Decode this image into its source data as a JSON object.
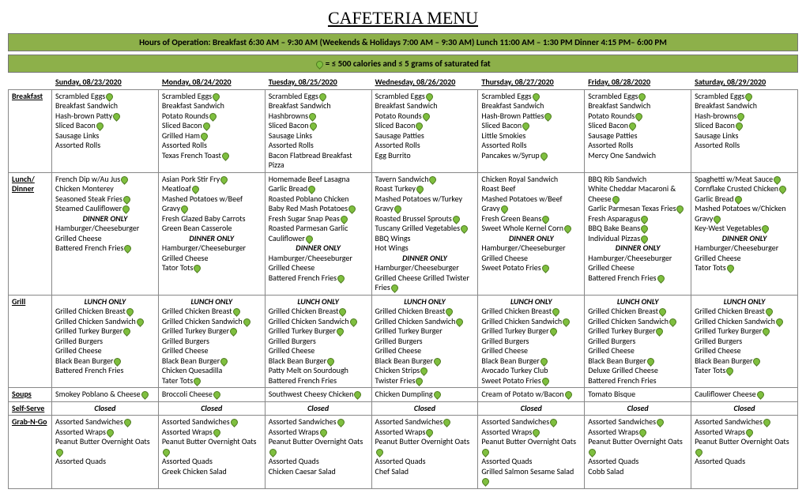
{
  "title": "CAFETERIA MENU",
  "banner1": "Hours of Operation:  Breakfast 6:30 AM – 9:30 AM (Weekends & Holidays 7:00 AM – 9:30 AM)   Lunch 11:00 AM – 1:30 PM   Dinner 4:15 PM– 6:00 PM",
  "banner2_suffix": " = ≤ 500 calories and ≤ 5 grams of saturated fat",
  "dates": [
    "Sunday, 08/23/2020",
    "Monday, 08/24/2020",
    "Tuesday, 08/25/2020",
    "Wednesday, 08/26/2020",
    "Thursday, 08/27/2020",
    "Friday, 08/28/2020",
    "Saturday, 08/29/2020"
  ],
  "colors": {
    "banner_bg": "#8db04a",
    "leaf": "#7fbf3f"
  },
  "rows": [
    {
      "cat": "Breakfast",
      "days": [
        [
          {
            "t": "Scrambled Eggs",
            "h": true
          },
          {
            "t": "Breakfast Sandwich"
          },
          {
            "t": "Hash-brown Patty",
            "h": true
          },
          {
            "t": "Sliced Bacon",
            "h": true
          },
          {
            "t": "Sausage Links"
          },
          {
            "t": "Assorted Rolls"
          }
        ],
        [
          {
            "t": "Scrambled Eggs",
            "h": true
          },
          {
            "t": "Breakfast Sandwich"
          },
          {
            "t": "Potato Rounds",
            "h": true
          },
          {
            "t": "Sliced Bacon",
            "h": true
          },
          {
            "t": "Grilled Ham",
            "h": true
          },
          {
            "t": "Assorted Rolls"
          },
          {
            "t": "Texas French Toast",
            "h": true
          }
        ],
        [
          {
            "t": "Scrambled Eggs",
            "h": true
          },
          {
            "t": "Breakfast Sandwich"
          },
          {
            "t": "Hashbrowns",
            "h": true
          },
          {
            "t": "Sliced Bacon",
            "h": true
          },
          {
            "t": "Sausage Links"
          },
          {
            "t": "Assorted Rolls"
          },
          {
            "t": "Bacon Flatbread Breakfast Pizza"
          }
        ],
        [
          {
            "t": "Scrambled Eggs",
            "h": true
          },
          {
            "t": "Breakfast Sandwich"
          },
          {
            "t": "Potato Rounds",
            "h": true
          },
          {
            "t": "Sliced Bacon",
            "h": true
          },
          {
            "t": "Sausage Patties"
          },
          {
            "t": "Assorted Rolls"
          },
          {
            "t": "Egg Burrito"
          }
        ],
        [
          {
            "t": "Scrambled Eggs",
            "h": true
          },
          {
            "t": "Breakfast Sandwich"
          },
          {
            "t": "Hash-Brown Patties",
            "h": true
          },
          {
            "t": "Sliced Bacon",
            "h": true
          },
          {
            "t": "Little Smokies"
          },
          {
            "t": "Assorted Rolls"
          },
          {
            "t": "Pancakes w/Syrup",
            "h": true
          }
        ],
        [
          {
            "t": "Scrambled Eggs",
            "h": true
          },
          {
            "t": "Breakfast Sandwich"
          },
          {
            "t": "Potato Rounds",
            "h": true
          },
          {
            "t": "Sliced Bacon",
            "h": true
          },
          {
            "t": "Sausage Patties"
          },
          {
            "t": "Assorted Rolls"
          },
          {
            "t": "Mercy One Sandwich"
          }
        ],
        [
          {
            "t": "Scrambled Eggs",
            "h": true
          },
          {
            "t": "Breakfast Sandwich"
          },
          {
            "t": "Hash-browns",
            "h": true
          },
          {
            "t": "Sliced Bacon",
            "h": true
          },
          {
            "t": "Sausage Links"
          },
          {
            "t": "Assorted Rolls"
          }
        ]
      ]
    },
    {
      "cat": "Lunch/\nDinner",
      "days": [
        [
          {
            "t": "French Dip w/Au Jus",
            "h": true
          },
          {
            "t": "Chicken Monterey"
          },
          {
            "t": "Seasoned Steak Fries",
            "h": true
          },
          {
            "t": "Steamed Cauliflower",
            "h": true
          },
          {
            "t": "DINNER ONLY",
            "em": true,
            "center": true
          },
          {
            "t": "Hamburger/Cheeseburger"
          },
          {
            "t": "Grilled Cheese"
          },
          {
            "t": "Battered French Fries",
            "h": true
          }
        ],
        [
          {
            "t": "Asian Pork Stir Fry",
            "h": true
          },
          {
            "t": "Meatloaf",
            "h": true
          },
          {
            "t": "Mashed Potatoes w/Beef Gravy",
            "h": true
          },
          {
            "t": "Fresh Glazed Baby Carrots"
          },
          {
            "t": "Green Bean Casserole"
          },
          {
            "t": "DINNER ONLY",
            "em": true,
            "center": true
          },
          {
            "t": "Hamburger/Cheeseburger"
          },
          {
            "t": "Grilled Cheese"
          },
          {
            "t": "Tator Tots",
            "h": true
          }
        ],
        [
          {
            "t": "Homemade Beef Lasagna"
          },
          {
            "t": "Garlic Bread",
            "h": true
          },
          {
            "t": "Roasted Poblano Chicken"
          },
          {
            "t": "Baby Red Mash Potatoes",
            "h": true
          },
          {
            "t": "Fresh Sugar Snap Peas",
            "h": true
          },
          {
            "t": "Roasted Parmesan Garlic Cauliflower",
            "h": true
          },
          {
            "t": "DINNER ONLY",
            "em": true,
            "center": true
          },
          {
            "t": "Hamburger/Cheeseburger"
          },
          {
            "t": "Grilled Cheese"
          },
          {
            "t": "Battered French Fries",
            "h": true
          }
        ],
        [
          {
            "t": "Tavern Sandwich",
            "h": true
          },
          {
            "t": "Roast Turkey",
            "h": true
          },
          {
            "t": "Mashed Potatoes w/Turkey Gravy",
            "h": true
          },
          {
            "t": "Roasted Brussel Sprouts",
            "h": true
          },
          {
            "t": "Tuscany Grilled Vegetables",
            "h": true
          },
          {
            "t": "BBQ Wings"
          },
          {
            "t": "Hot Wings"
          },
          {
            "t": "DINNER ONLY",
            "em": true,
            "center": true
          },
          {
            "t": "Hamburger/Cheeseburger"
          },
          {
            "t": "Grilled Cheese Grilled Twister Fries",
            "h": true
          }
        ],
        [
          {
            "t": "Chicken Royal Sandwich"
          },
          {
            "t": "Roast Beef"
          },
          {
            "t": "Mashed Potatoes w/Beef Gravy",
            "h": true
          },
          {
            "t": " Fresh Green Beans",
            "h": true
          },
          {
            "t": "Sweet Whole Kernel Corn",
            "h": true
          },
          {
            "t": "DINNER ONLY",
            "em": true,
            "center": true
          },
          {
            "t": "Hamburger/Cheeseburger"
          },
          {
            "t": "Grilled Cheese"
          },
          {
            "t": "Sweet Potato Fries",
            "h": true
          }
        ],
        [
          {
            "t": "BBQ Rib Sandwich"
          },
          {
            "t": "White Cheddar Macaroni & Cheese",
            "h": true
          },
          {
            "t": "Garlic Parmesan Texas Fries",
            "h": true
          },
          {
            "t": "Fresh Asparagus",
            "h": true
          },
          {
            "t": "BBQ Bake Beans",
            "h": true
          },
          {
            "t": "Individual Pizzas",
            "h": true
          },
          {
            "t": "DINNER ONLY",
            "em": true,
            "center": true
          },
          {
            "t": "Hamburger/Cheeseburger"
          },
          {
            "t": "Grilled Cheese"
          },
          {
            "t": "Battered French Fries",
            "h": true
          }
        ],
        [
          {
            "t": "Spaghetti w/Meat Sauce",
            "h": true
          },
          {
            "t": "Cornflake Crusted Chicken",
            "h": true
          },
          {
            "t": "Garlic Bread",
            "h": true
          },
          {
            "t": "Mashed Potatoes w/Chicken Gravy",
            "h": true
          },
          {
            "t": "Key-West Vegetables",
            "h": true
          },
          {
            "t": "DINNER ONLY",
            "em": true,
            "center": true
          },
          {
            "t": "Hamburger/Cheeseburger"
          },
          {
            "t": "Grilled Cheese"
          },
          {
            "t": "Tator Tots",
            "h": true
          }
        ]
      ]
    },
    {
      "cat": "Grill",
      "days": [
        [
          {
            "t": "LUNCH ONLY",
            "em": true,
            "center": true
          },
          {
            "t": "Grilled Chicken Breast",
            "h": true
          },
          {
            "t": "Grilled Chicken Sandwich",
            "h": true
          },
          {
            "t": "Grilled Turkey Burger",
            "h": true
          },
          {
            "t": "Grilled Burgers"
          },
          {
            "t": "Grilled Cheese"
          },
          {
            "t": "Black Bean Burger",
            "h": true
          },
          {
            "t": "Battered French Fries"
          }
        ],
        [
          {
            "t": "LUNCH ONLY",
            "em": true,
            "center": true
          },
          {
            "t": "Grilled Chicken Breast",
            "h": true
          },
          {
            "t": "Grilled Chicken Sandwich",
            "h": true
          },
          {
            "t": "Grilled Turkey Burger",
            "h": true
          },
          {
            "t": "Grilled Burgers"
          },
          {
            "t": "Grilled Cheese"
          },
          {
            "t": "Black Bean Burger",
            "h": true
          },
          {
            "t": "Chicken Quesadilla"
          },
          {
            "t": "Tater Tots",
            "h": true
          }
        ],
        [
          {
            "t": "LUNCH ONLY",
            "em": true,
            "center": true
          },
          {
            "t": "Grilled Chicken Breast",
            "h": true
          },
          {
            "t": "Grilled Chicken Sandwich",
            "h": true
          },
          {
            "t": "Grilled Turkey Burger",
            "h": true
          },
          {
            "t": "Grilled Burgers"
          },
          {
            "t": "Grilled Cheese"
          },
          {
            "t": "Black Bean Burger",
            "h": true
          },
          {
            "t": "Patty Melt on Sourdough"
          },
          {
            "t": "Battered French Fries"
          }
        ],
        [
          {
            "t": "LUNCH ONLY",
            "em": true,
            "center": true
          },
          {
            "t": "Grilled Chicken Breast",
            "h": true
          },
          {
            "t": "Grilled Chicken Sandwich",
            "h": true
          },
          {
            "t": "Grilled Turkey Burger"
          },
          {
            "t": "Grilled Burgers"
          },
          {
            "t": "Grilled Cheese"
          },
          {
            "t": "Black Bean Burger",
            "h": true
          },
          {
            "t": "Chicken Strips",
            "h": true
          },
          {
            "t": "Twister Fries",
            "h": true
          }
        ],
        [
          {
            "t": "LUNCH ONLY",
            "em": true,
            "center": true
          },
          {
            "t": "Grilled Chicken Breast",
            "h": true
          },
          {
            "t": "Grilled Chicken Sandwich",
            "h": true
          },
          {
            "t": "Grilled Turkey Burger",
            "h": true
          },
          {
            "t": "Grilled Burgers"
          },
          {
            "t": "Grilled Cheese"
          },
          {
            "t": "Black Bean Burger",
            "h": true
          },
          {
            "t": "Avocado Turkey Club"
          },
          {
            "t": "Sweet Potato Fries",
            "h": true
          }
        ],
        [
          {
            "t": "LUNCH ONLY",
            "em": true,
            "center": true
          },
          {
            "t": "Grilled Chicken Breast",
            "h": true
          },
          {
            "t": "Grilled Chicken Sandwich",
            "h": true
          },
          {
            "t": "Grilled Turkey Burger",
            "h": true
          },
          {
            "t": "Grilled Burgers"
          },
          {
            "t": "Grilled Cheese"
          },
          {
            "t": "Black Bean Burger",
            "h": true
          },
          {
            "t": "Deluxe Grilled Cheese"
          },
          {
            "t": "Battered French Fries"
          }
        ],
        [
          {
            "t": "LUNCH ONLY",
            "em": true,
            "center": true
          },
          {
            "t": "Grilled Chicken Breast",
            "h": true
          },
          {
            "t": "Grilled Chicken Sandwich",
            "h": true
          },
          {
            "t": "Grilled Turkey Burger",
            "h": true
          },
          {
            "t": "Grilled Burgers"
          },
          {
            "t": "Grilled Cheese"
          },
          {
            "t": "Black Bean Burger",
            "h": true
          },
          {
            "t": "Tater Tots",
            "h": true
          }
        ]
      ]
    },
    {
      "cat": "Soups",
      "days": [
        [
          {
            "t": "Smokey Poblano & Cheese",
            "h": true
          }
        ],
        [
          {
            "t": "Broccoli Cheese",
            "h": true
          }
        ],
        [
          {
            "t": "Southwest Cheesy Chicken",
            "h": true
          }
        ],
        [
          {
            "t": "Chicken Dumpling",
            "h": true
          }
        ],
        [
          {
            "t": "Cream of Potato w/Bacon",
            "h": true
          }
        ],
        [
          {
            "t": "Tomato Bisque"
          }
        ],
        [
          {
            "t": "Cauliflower Cheese",
            "h": true
          }
        ]
      ]
    },
    {
      "cat": "Self-Serve",
      "days": [
        [
          {
            "t": "Closed",
            "closed": true
          }
        ],
        [
          {
            "t": "Closed",
            "closed": true
          }
        ],
        [
          {
            "t": "Closed",
            "closed": true
          }
        ],
        [
          {
            "t": "Closed",
            "closed": true
          }
        ],
        [
          {
            "t": "Closed",
            "closed": true
          }
        ],
        [
          {
            "t": "Closed",
            "closed": true
          }
        ],
        [
          {
            "t": "Closed",
            "closed": true
          }
        ]
      ]
    },
    {
      "cat": "Grab-N-Go",
      "days": [
        [
          {
            "t": "Assorted Sandwiches",
            "h": true
          },
          {
            "t": "Assorted Wraps",
            "h": true
          },
          {
            "t": "Peanut Butter Overnight Oats",
            "h": true
          },
          {
            "t": "Assorted Quads"
          }
        ],
        [
          {
            "t": "Assorted Sandwiches",
            "h": true
          },
          {
            "t": "Assorted Wraps",
            "h": true
          },
          {
            "t": "Peanut Butter Overnight Oats",
            "h": true
          },
          {
            "t": "Assorted Quads"
          },
          {
            "t": "Greek Chicken Salad"
          }
        ],
        [
          {
            "t": "Assorted Sandwiches",
            "h": true
          },
          {
            "t": "Assorted Wraps",
            "h": true
          },
          {
            "t": "Peanut Butter Overnight Oats",
            "h": true
          },
          {
            "t": "Assorted Quads"
          },
          {
            "t": "Chicken Caesar Salad"
          }
        ],
        [
          {
            "t": "Assorted Sandwiches",
            "h": true
          },
          {
            "t": "Assorted Wraps",
            "h": true
          },
          {
            "t": "Peanut Butter Overnight Oats",
            "h": true
          },
          {
            "t": "Assorted Quads"
          },
          {
            "t": "Chef Salad"
          }
        ],
        [
          {
            "t": "Assorted Sandwiches",
            "h": true
          },
          {
            "t": "Assorted Wraps",
            "h": true
          },
          {
            "t": "Peanut Butter Overnight Oats",
            "h": true
          },
          {
            "t": "Assorted Quads"
          },
          {
            "t": "Grilled Salmon Sesame Salad",
            "h": true
          }
        ],
        [
          {
            "t": "Assorted Sandwiches",
            "h": true
          },
          {
            "t": "Assorted Wraps",
            "h": true
          },
          {
            "t": "Peanut Butter Overnight Oats",
            "h": true
          },
          {
            "t": "Assorted Quads"
          },
          {
            "t": "Cobb Salad"
          }
        ],
        [
          {
            "t": "Assorted Sandwiches",
            "h": true
          },
          {
            "t": "Assorted Wraps",
            "h": true
          },
          {
            "t": "Peanut Butter Overnight Oats",
            "h": true
          },
          {
            "t": "Assorted Quads"
          }
        ]
      ]
    }
  ]
}
